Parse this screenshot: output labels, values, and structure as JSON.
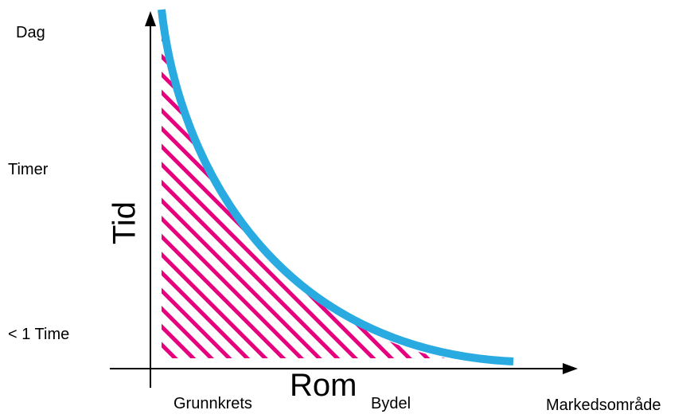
{
  "diagram": {
    "y_ticks": [
      "Dag",
      "Timer",
      "< 1 Time"
    ],
    "x_ticks": [
      "Grunnkrets",
      "Bydel",
      "Markedsområde"
    ],
    "y_axis_title": "Tid",
    "x_axis_title": "Rom"
  },
  "colors": {
    "axis": "#000000",
    "curve": "#29abe2",
    "hatch": "#e6007e",
    "background": "#ffffff"
  }
}
